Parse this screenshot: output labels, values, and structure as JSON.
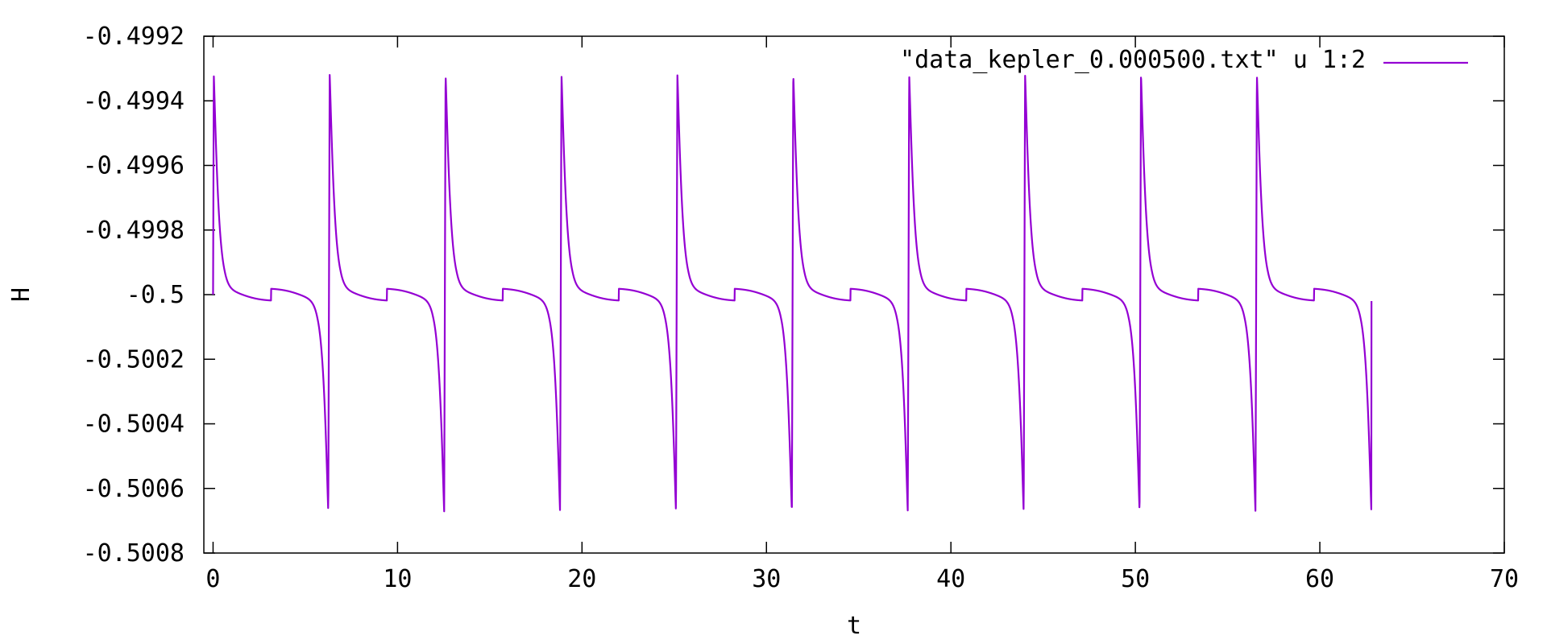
{
  "chart_data": {
    "type": "line",
    "title": "",
    "xlabel": "t",
    "ylabel": "H",
    "xlim": [
      -0.5,
      70
    ],
    "ylim": [
      -0.5008,
      -0.4992
    ],
    "xticks": [
      0,
      10,
      20,
      30,
      40,
      50,
      60,
      70
    ],
    "xtick_labels": [
      "0",
      "10",
      "20",
      "30",
      "40",
      "50",
      "60",
      "70"
    ],
    "yticks": [
      -0.4992,
      -0.4994,
      -0.4996,
      -0.4998,
      -0.5,
      -0.5002,
      -0.5004,
      -0.5006,
      -0.5008
    ],
    "ytick_labels": [
      "-0.4992",
      "-0.4994",
      "-0.4996",
      "-0.4998",
      "-0.5",
      "-0.5002",
      "-0.5004",
      "-0.5006",
      "-0.5008"
    ],
    "grid": false,
    "legend": {
      "position": "top-right"
    },
    "series": [
      {
        "name": "\"data_kepler_0.000500.txt\" u 1:2",
        "color": "#9400D3",
        "t_start": 0,
        "t_end": 62.8,
        "period": 6.2832,
        "baseline": -0.5,
        "peak": -0.49932,
        "trough": -0.50067,
        "end_value": -0.50002
      }
    ]
  }
}
